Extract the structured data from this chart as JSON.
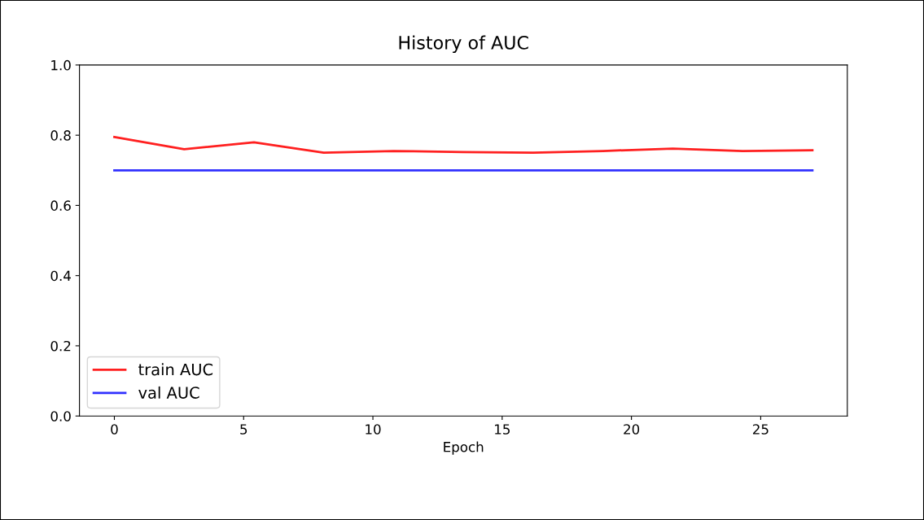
{
  "chart_data": {
    "type": "line",
    "title": "History of AUC",
    "xlabel": "Epoch",
    "x": [
      0,
      2.7,
      5.4,
      8.1,
      10.8,
      13.5,
      16.2,
      18.9,
      21.6,
      24.3,
      27
    ],
    "series": [
      {
        "name": "train AUC",
        "color": "#ff2020",
        "values": [
          0.795,
          0.76,
          0.78,
          0.75,
          0.755,
          0.752,
          0.75,
          0.755,
          0.762,
          0.755,
          0.757
        ]
      },
      {
        "name": "val AUC",
        "color": "#3030ff",
        "values": [
          0.7,
          0.7,
          0.7,
          0.7,
          0.7,
          0.7,
          0.7,
          0.7,
          0.7,
          0.7,
          0.7
        ]
      }
    ],
    "xlim": [
      -1.35,
      28.35
    ],
    "xticks": [
      0,
      5,
      10,
      15,
      20,
      25
    ],
    "ylim": [
      0,
      1
    ],
    "yticks": [
      {
        "value": 0,
        "label": "0.0"
      },
      0.2,
      0.4,
      0.6,
      0.8,
      {
        "value": 1,
        "label": "1.0"
      }
    ],
    "grid": false,
    "legend": "bottom left",
    "marker": "none",
    "line_style": "solid"
  }
}
